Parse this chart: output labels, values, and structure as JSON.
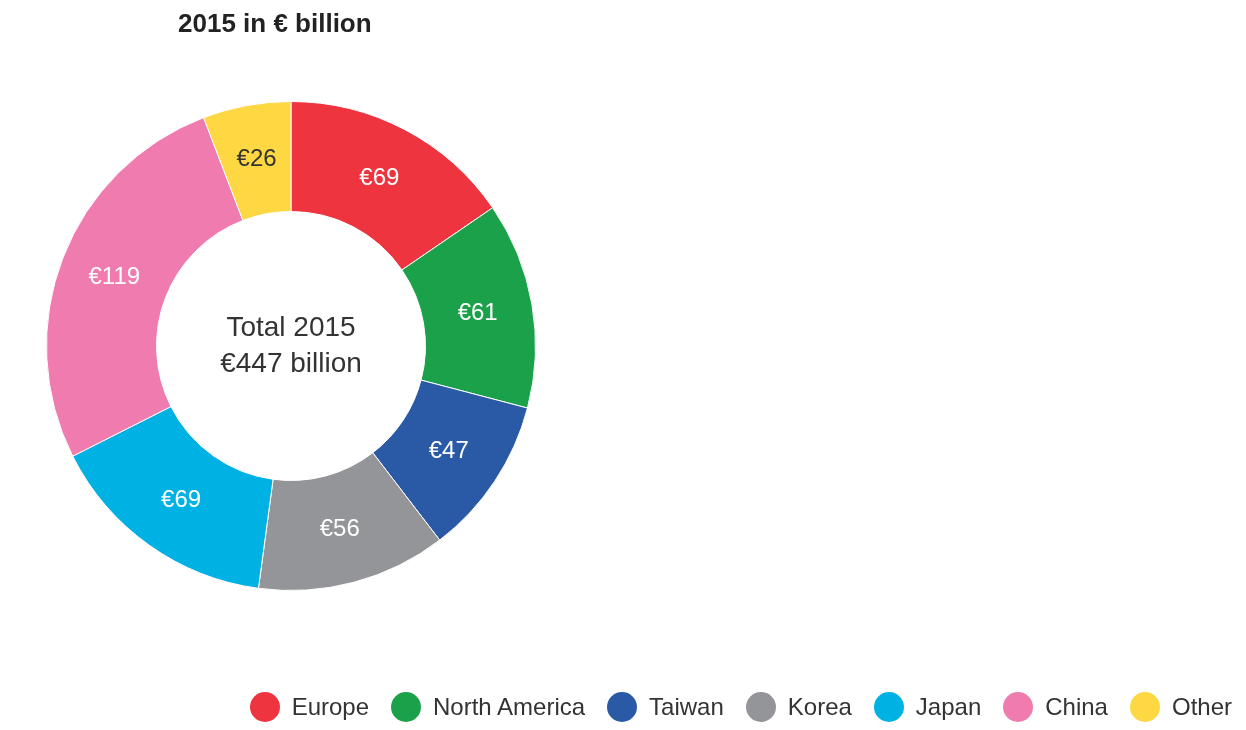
{
  "chart_data": {
    "type": "donut",
    "title": "2015 in € billion",
    "categories": [
      "Europe",
      "North America",
      "Taiwan",
      "Korea",
      "Japan",
      "China",
      "Other"
    ],
    "values": [
      69,
      61,
      47,
      56,
      69,
      119,
      26
    ],
    "colors": [
      "#ee343f",
      "#1aa14a",
      "#2a5aa6",
      "#939598",
      "#00b1e3",
      "#f07bae",
      "#fdd842"
    ],
    "value_labels": [
      "€69",
      "€61",
      "€47",
      "€56",
      "€69",
      "€119",
      "€26"
    ],
    "annotations": [
      "Total 2015",
      "€447 billion"
    ],
    "legend": "bottom right"
  }
}
